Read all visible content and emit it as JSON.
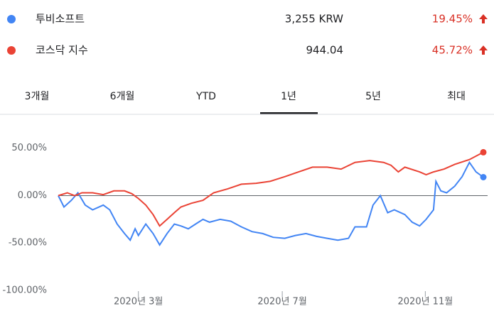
{
  "legend": [
    {
      "name": "투비소프트",
      "price": "3,255 KRW",
      "change": "19.45%",
      "color": "#4285f4"
    },
    {
      "name": "코스닥 지수",
      "price": "944.04",
      "change": "45.72%",
      "color": "#ea4335"
    }
  ],
  "tabs": [
    "3개월",
    "6개월",
    "YTD",
    "1년",
    "5년",
    "최대"
  ],
  "selected_tab": 3,
  "chart_data": {
    "type": "line",
    "xlim": [
      0,
      52
    ],
    "xticks": [
      {
        "value": 9.8,
        "label": "2020년 3월"
      },
      {
        "value": 27.4,
        "label": "2020년 7월"
      },
      {
        "value": 44.9,
        "label": "2020년 11월"
      }
    ],
    "ylim": [
      -100,
      70
    ],
    "yticks": [
      {
        "value": 50,
        "label": "50.00%"
      },
      {
        "value": 0,
        "label": "0.00%"
      },
      {
        "value": -50,
        "label": "-50.00%"
      },
      {
        "value": -100,
        "label": "-100.00%"
      }
    ],
    "series": [
      {
        "name": "투비소프트",
        "color": "#4285f4",
        "x": [
          0,
          0.7,
          1.6,
          2.4,
          3.3,
          4.2,
          5.5,
          6.3,
          7.2,
          8.1,
          8.8,
          9.4,
          9.8,
          10.7,
          11.6,
          12.4,
          13.3,
          14.2,
          15,
          15.9,
          16.8,
          17.7,
          18.5,
          19.8,
          21.1,
          22.4,
          23.7,
          25,
          26.3,
          27.7,
          29,
          30.3,
          31.6,
          32.9,
          34.2,
          35.5,
          36.3,
          37.7,
          38.5,
          39.4,
          40.3,
          41.1,
          42.4,
          43.3,
          44.2,
          45,
          45.9,
          46.2,
          46.8,
          47.5,
          48.5,
          49.4,
          50.3,
          51.1,
          52
        ],
        "values": [
          0,
          -12,
          -5,
          3,
          -10,
          -15,
          -10,
          -15,
          -30,
          -40,
          -47,
          -35,
          -42,
          -30,
          -40,
          -52,
          -40,
          -30,
          -32,
          -35,
          -30,
          -25,
          -28,
          -25,
          -27,
          -33,
          -38,
          -40,
          -44,
          -45,
          -42,
          -40,
          -43,
          -45,
          -47,
          -45,
          -33,
          -33,
          -10,
          0,
          -18,
          -15,
          -20,
          -28,
          -32,
          -25,
          -15,
          15,
          5,
          3,
          10,
          20,
          35,
          25,
          19.45
        ]
      },
      {
        "name": "코스닥 지수",
        "color": "#ea4335",
        "x": [
          0,
          1.1,
          2,
          2.9,
          4.2,
          5.5,
          6.8,
          8.1,
          9,
          9.8,
          10.7,
          11.6,
          12.4,
          13.3,
          14.2,
          15,
          16.3,
          17.7,
          19,
          20.7,
          22.4,
          24.2,
          25.9,
          27.7,
          29.4,
          31.1,
          32.9,
          34.6,
          36.3,
          38.1,
          39.8,
          40.7,
          41.6,
          42.4,
          44.2,
          45,
          45.9,
          47.2,
          48.5,
          50.3,
          52
        ],
        "values": [
          0,
          3,
          0,
          3,
          3,
          1,
          5,
          5,
          2,
          -3,
          -10,
          -20,
          -32,
          -25,
          -18,
          -12,
          -8,
          -5,
          3,
          7,
          12,
          13,
          15,
          20,
          25,
          30,
          30,
          28,
          35,
          37,
          35,
          32,
          25,
          30,
          25,
          22,
          25,
          28,
          33,
          38,
          45.72
        ]
      }
    ]
  }
}
